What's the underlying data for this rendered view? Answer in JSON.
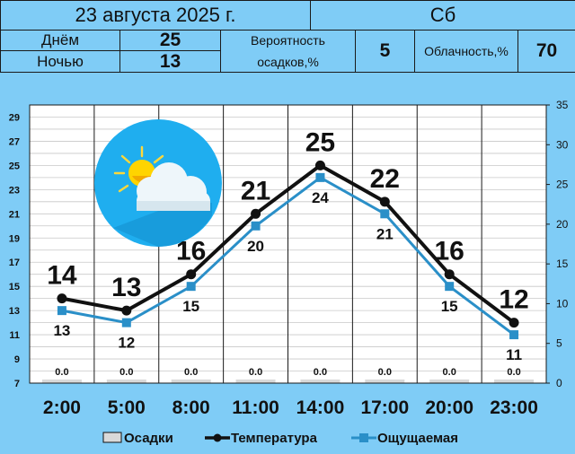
{
  "header": {
    "date": "23 августа 2025 г.",
    "weekday": "Сб",
    "day_label": "Днём",
    "day_value": "25",
    "night_label": "Ночью",
    "night_value": "13",
    "precip_prob_label_1": "Вероятность",
    "precip_prob_label_2": "осадков,%",
    "precip_prob_value": "5",
    "cloud_label": "Облачность,%",
    "cloud_value": "70"
  },
  "weather_icon": "partly-cloudy-icon",
  "colors": {
    "background": "#7fccf6",
    "temperature": "#111111",
    "feels_like": "#2a8fc8",
    "precipitation": "#d9d9d9"
  },
  "chart_data": {
    "type": "line",
    "categories": [
      "2:00",
      "5:00",
      "8:00",
      "11:00",
      "14:00",
      "17:00",
      "20:00",
      "23:00"
    ],
    "series": [
      {
        "name": "Температура",
        "values": [
          14,
          13,
          16,
          21,
          25,
          22,
          16,
          12
        ]
      },
      {
        "name": "Ощущаемая",
        "values": [
          13,
          12,
          15,
          20,
          24,
          21,
          15,
          11
        ]
      },
      {
        "name": "Осадки",
        "type": "bar",
        "axis": "right",
        "values": [
          0.0,
          0.0,
          0.0,
          0.0,
          0.0,
          0.0,
          0.0,
          0.0
        ],
        "labels": [
          "0.0",
          "0.0",
          "0.0",
          "0.0",
          "0.0",
          "0.0",
          "0.0",
          "0.0"
        ]
      }
    ],
    "y_left": {
      "min": 7,
      "max": 30,
      "ticks": [
        7,
        9,
        11,
        13,
        15,
        17,
        19,
        21,
        23,
        25,
        27,
        29
      ]
    },
    "y_right": {
      "min": 0,
      "max": 35,
      "ticks": [
        0,
        5,
        10,
        15,
        20,
        25,
        30,
        35
      ]
    },
    "legend": [
      "Осадки",
      "Температура",
      "Ощущаемая"
    ],
    "legend_position": "bottom",
    "grid": true
  }
}
